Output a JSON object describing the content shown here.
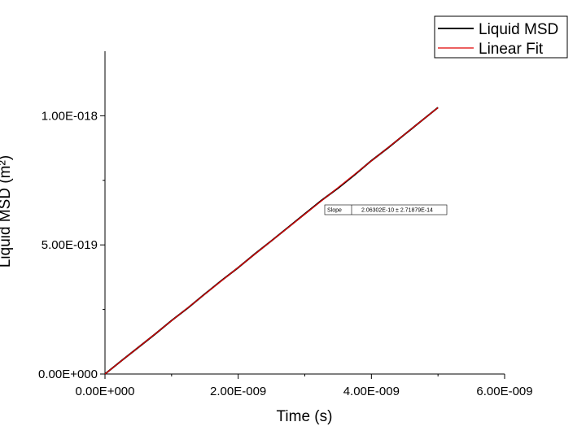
{
  "chart_data": {
    "type": "line",
    "xlabel": "Time (s)",
    "ylabel": "Liquid MSD (m²)",
    "xlim": [
      0,
      6e-09
    ],
    "ylim": [
      0,
      1.25e-18
    ],
    "x_ticks": [
      0,
      2e-09,
      4e-09,
      6e-09
    ],
    "x_tick_labels": [
      "0.00E+000",
      "2.00E-009",
      "4.00E-009",
      "6.00E-009"
    ],
    "y_ticks": [
      0,
      5e-19,
      1e-18
    ],
    "y_tick_labels": [
      "0.00E+000",
      "5.00E-019",
      "1.00E-018"
    ],
    "grid": false,
    "legend_position": "top-right",
    "series": [
      {
        "name": "Liquid MSD",
        "color": "#000000",
        "x": [
          0,
          2.5e-10,
          5e-10,
          7.5e-10,
          1e-09,
          1.25e-09,
          1.5e-09,
          1.75e-09,
          2e-09,
          2.25e-09,
          2.5e-09,
          2.75e-09,
          3e-09,
          3.25e-09,
          3.5e-09,
          3.75e-09,
          4e-09,
          4.25e-09,
          4.5e-09,
          4.75e-09,
          5e-09
        ],
        "y": [
          0,
          5.2e-20,
          1.03e-19,
          1.54e-19,
          2.07e-19,
          2.57e-19,
          3.1e-19,
          3.62e-19,
          4.12e-19,
          4.65e-19,
          5.16e-19,
          5.68e-19,
          6.2e-19,
          6.72e-19,
          7.2e-19,
          7.72e-19,
          8.26e-19,
          8.76e-19,
          9.28e-19,
          9.8e-19,
          1.032e-18
        ]
      },
      {
        "name": "Linear Fit",
        "color": "#e00000",
        "x": [
          0,
          5e-09
        ],
        "y": [
          0,
          1.0315e-18
        ]
      }
    ],
    "fit_table": {
      "label": "Slope",
      "value": "2.06302E-10 ± 2.71879E-14"
    }
  }
}
